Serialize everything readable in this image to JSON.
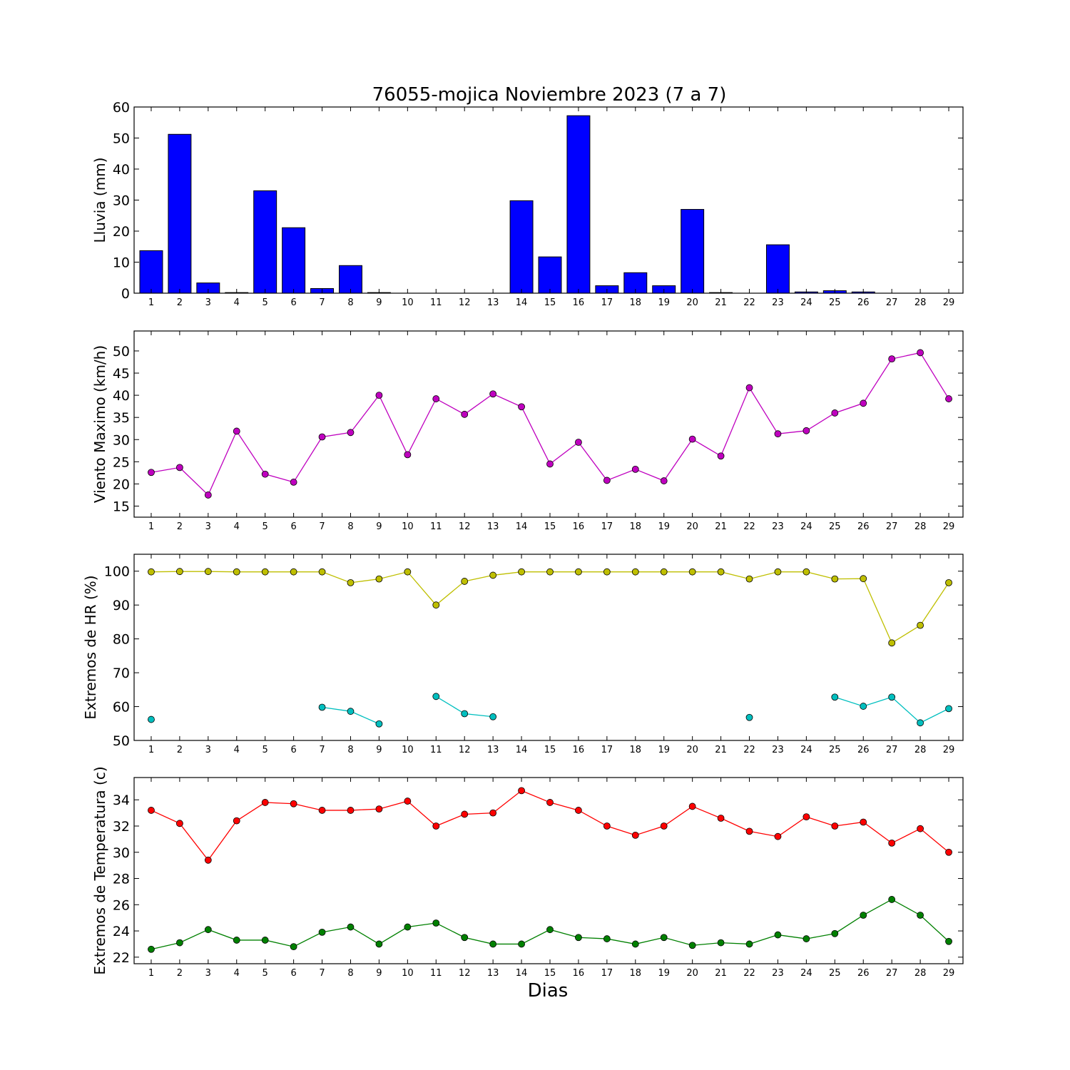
{
  "chart_data": {
    "title": "76055-mojica Noviembre 2023  (7 a 7)",
    "xlabel": "Dias",
    "days": [
      1,
      2,
      3,
      4,
      5,
      6,
      7,
      8,
      9,
      10,
      11,
      12,
      13,
      14,
      15,
      16,
      17,
      18,
      19,
      20,
      21,
      22,
      23,
      24,
      25,
      26,
      27,
      28,
      29
    ],
    "panels": [
      {
        "id": "lluvia",
        "type": "bar",
        "ylabel": "Lluvia (mm)",
        "ylim": [
          0,
          60
        ],
        "yticks": [
          0,
          10,
          20,
          30,
          40,
          50,
          60
        ],
        "series": [
          {
            "color": "#0000ff",
            "values": [
              13.7,
              51.2,
              3.3,
              0.2,
              33.0,
              21.1,
              1.5,
              8.9,
              0.2,
              0,
              0,
              0,
              0,
              29.8,
              11.7,
              57.2,
              2.4,
              6.6,
              2.4,
              27.0,
              0.2,
              0,
              15.6,
              0.4,
              0.8,
              0.4,
              0,
              0,
              0
            ]
          }
        ]
      },
      {
        "id": "viento",
        "type": "line",
        "ylabel": "Viento Maximo (km/h)",
        "ylim": [
          12.5,
          54.5
        ],
        "yticks": [
          15,
          20,
          25,
          30,
          35,
          40,
          45,
          50
        ],
        "series": [
          {
            "color": "#bf00bf",
            "values": [
              22.6,
              23.7,
              17.5,
              31.9,
              22.2,
              20.4,
              30.6,
              31.6,
              40.0,
              26.6,
              39.2,
              35.7,
              40.3,
              37.4,
              24.5,
              29.4,
              20.8,
              23.3,
              20.7,
              30.1,
              26.3,
              41.7,
              31.3,
              32.0,
              36.0,
              38.2,
              48.2,
              49.6,
              39.2
            ]
          }
        ]
      },
      {
        "id": "hr",
        "type": "line",
        "ylabel": "Extremos de HR (%)",
        "ylim": [
          50,
          105
        ],
        "yticks": [
          50,
          60,
          70,
          80,
          90,
          100
        ],
        "series": [
          {
            "color": "#bfbf00",
            "values": [
              99.8,
              99.9,
              99.9,
              99.8,
              99.8,
              99.8,
              99.8,
              96.6,
              97.7,
              99.8,
              90.0,
              97.0,
              98.8,
              99.8,
              99.8,
              99.8,
              99.8,
              99.8,
              99.8,
              99.8,
              99.8,
              97.7,
              99.8,
              99.8,
              97.7,
              97.8,
              78.8,
              84.0,
              96.6
            ]
          },
          {
            "color": "#00bfbf",
            "values": [
              56.2,
              null,
              null,
              null,
              null,
              null,
              59.8,
              58.6,
              54.9,
              null,
              63.0,
              57.9,
              57.0,
              null,
              null,
              null,
              null,
              null,
              null,
              null,
              null,
              56.8,
              null,
              null,
              62.8,
              60.1,
              62.8,
              55.2,
              59.4
            ]
          }
        ]
      },
      {
        "id": "temp",
        "type": "line",
        "ylabel": "Extremos de Temperatura (c)",
        "ylim": [
          21.5,
          35.7
        ],
        "yticks": [
          22,
          24,
          26,
          28,
          30,
          32,
          34
        ],
        "series": [
          {
            "color": "#ff0000",
            "values": [
              33.2,
              32.2,
              29.4,
              32.4,
              33.8,
              33.7,
              33.2,
              33.2,
              33.3,
              33.9,
              32.0,
              32.9,
              33.0,
              34.7,
              33.8,
              33.2,
              32.0,
              31.3,
              32.0,
              33.5,
              32.6,
              31.6,
              31.2,
              32.7,
              32.0,
              32.3,
              30.7,
              31.8,
              30.0
            ]
          },
          {
            "color": "#008000",
            "values": [
              22.6,
              23.1,
              24.1,
              23.3,
              23.3,
              22.8,
              23.9,
              24.3,
              23.0,
              24.3,
              24.6,
              23.5,
              23.0,
              23.0,
              24.1,
              23.5,
              23.4,
              23.0,
              23.5,
              22.9,
              23.1,
              23.0,
              23.7,
              23.4,
              23.8,
              25.2,
              26.4,
              25.2,
              23.2
            ]
          }
        ]
      }
    ]
  }
}
